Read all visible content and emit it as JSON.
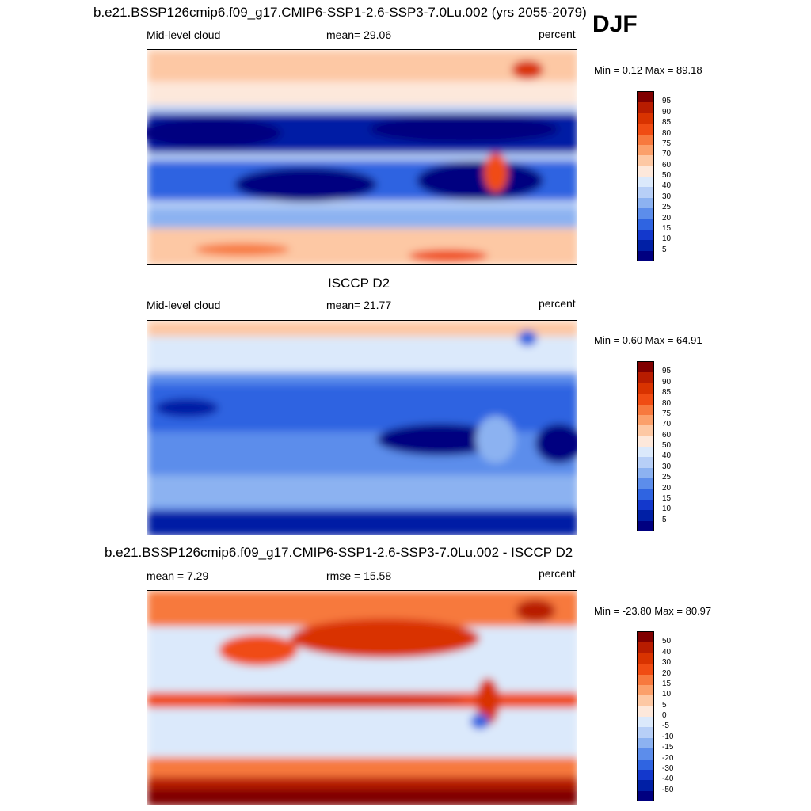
{
  "season": "DJF",
  "panels": [
    {
      "id": "model",
      "title": "b.e21.BSSP126cmip6.f09_g17.CMIP6-SSP1-2.6-SSP3-7.0Lu.002 (yrs 2055-2079)",
      "left_label": "Mid-level cloud",
      "center_label": "mean=  29.06",
      "units": "percent",
      "minmax": "Min =   0.12 Max =  89.18",
      "levels": [
        "95",
        "90",
        "85",
        "80",
        "75",
        "70",
        "60",
        "50",
        "40",
        "30",
        "25",
        "20",
        "15",
        "10",
        "5"
      ],
      "colors": [
        "#800000",
        "#b81c00",
        "#d93300",
        "#f04c13",
        "#f7793e",
        "#fba06b",
        "#fdc8a4",
        "#fde8db",
        "#dbe9fb",
        "#b7cff7",
        "#8cb2f1",
        "#5c8deb",
        "#2f64e1",
        "#1338cc",
        "#001fa5",
        "#000080"
      ]
    },
    {
      "id": "obs",
      "title": "ISCCP D2",
      "left_label": "Mid-level cloud",
      "center_label": "mean=  21.77",
      "units": "percent",
      "minmax": "Min =   0.60 Max =  64.91",
      "levels": [
        "95",
        "90",
        "85",
        "80",
        "75",
        "70",
        "60",
        "50",
        "40",
        "30",
        "25",
        "20",
        "15",
        "10",
        "5"
      ],
      "colors": [
        "#800000",
        "#b81c00",
        "#d93300",
        "#f04c13",
        "#f7793e",
        "#fba06b",
        "#fdc8a4",
        "#fde8db",
        "#dbe9fb",
        "#b7cff7",
        "#8cb2f1",
        "#5c8deb",
        "#2f64e1",
        "#1338cc",
        "#001fa5",
        "#000080"
      ]
    },
    {
      "id": "diff",
      "title": "b.e21.BSSP126cmip6.f09_g17.CMIP6-SSP1-2.6-SSP3-7.0Lu.002 - ISCCP D2",
      "left_label": "mean =   7.29",
      "center_label": "rmse =  15.58",
      "units": "percent",
      "minmax": "Min = -23.80 Max =  80.97",
      "levels": [
        "50",
        "40",
        "30",
        "20",
        "15",
        "10",
        "5",
        "0",
        "-5",
        "-10",
        "-15",
        "-20",
        "-30",
        "-40",
        "-50"
      ],
      "colors": [
        "#800000",
        "#b81c00",
        "#d93300",
        "#f04c13",
        "#f7793e",
        "#fba06b",
        "#fdc8a4",
        "#fde8db",
        "#dbe9fb",
        "#b7cff7",
        "#8cb2f1",
        "#5c8deb",
        "#2f64e1",
        "#1338cc",
        "#001fa5",
        "#000080"
      ]
    }
  ]
}
